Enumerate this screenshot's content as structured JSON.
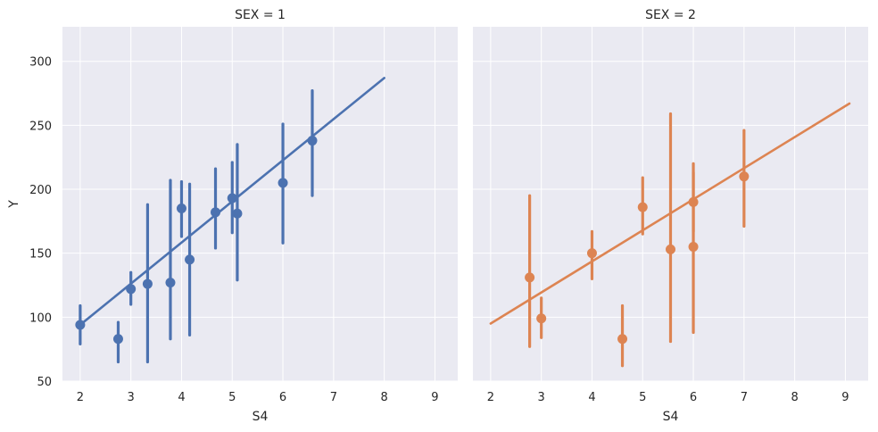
{
  "chart_data": {
    "type": "scatter",
    "style": "point estimates with error bars and linear regression fit, faceted",
    "shared": {
      "xlabel": "S4",
      "ylabel": "Y",
      "ylim": [
        50,
        327
      ],
      "yticks": [
        50,
        100,
        150,
        200,
        250,
        300
      ],
      "xticks": [
        2,
        3,
        4,
        5,
        6,
        7,
        8,
        9
      ],
      "xlim": [
        1.65,
        9.45
      ],
      "grid": true
    },
    "panels": [
      {
        "title": "SEX = 1",
        "color": "#4c72b0",
        "points": [
          {
            "x": 2.0,
            "y": 94,
            "low": 79,
            "high": 109
          },
          {
            "x": 2.75,
            "y": 83,
            "low": 65,
            "high": 96
          },
          {
            "x": 3.0,
            "y": 122,
            "low": 110,
            "high": 135
          },
          {
            "x": 3.33,
            "y": 126,
            "low": 65,
            "high": 188
          },
          {
            "x": 3.78,
            "y": 127,
            "low": 83,
            "high": 207
          },
          {
            "x": 4.0,
            "y": 185,
            "low": 163,
            "high": 206
          },
          {
            "x": 4.16,
            "y": 145,
            "low": 86,
            "high": 204
          },
          {
            "x": 4.67,
            "y": 182,
            "low": 154,
            "high": 216
          },
          {
            "x": 5.0,
            "y": 193,
            "low": 166,
            "high": 221
          },
          {
            "x": 5.1,
            "y": 181,
            "low": 129,
            "high": 235
          },
          {
            "x": 6.0,
            "y": 205,
            "low": 158,
            "high": 251
          },
          {
            "x": 6.58,
            "y": 238,
            "low": 195,
            "high": 277
          }
        ],
        "fit": {
          "x0": 2.0,
          "y0": 94,
          "x1": 8.0,
          "y1": 287
        }
      },
      {
        "title": "SEX = 2",
        "color": "#dd8452",
        "points": [
          {
            "x": 2.77,
            "y": 131,
            "low": 77,
            "high": 195
          },
          {
            "x": 3.0,
            "y": 99,
            "low": 84,
            "high": 115
          },
          {
            "x": 4.0,
            "y": 150,
            "low": 130,
            "high": 167
          },
          {
            "x": 4.6,
            "y": 83,
            "low": 62,
            "high": 109
          },
          {
            "x": 5.0,
            "y": 186,
            "low": 165,
            "high": 209
          },
          {
            "x": 5.55,
            "y": 153,
            "low": 81,
            "high": 259
          },
          {
            "x": 6.0,
            "y": 190,
            "low": 167,
            "high": 220
          },
          {
            "x": 6.0,
            "y": 155,
            "low": 88,
            "high": 213
          },
          {
            "x": 7.0,
            "y": 210,
            "low": 171,
            "high": 246
          }
        ],
        "fit": {
          "x0": 2.0,
          "y0": 95,
          "x1": 9.08,
          "y1": 267
        }
      }
    ]
  }
}
